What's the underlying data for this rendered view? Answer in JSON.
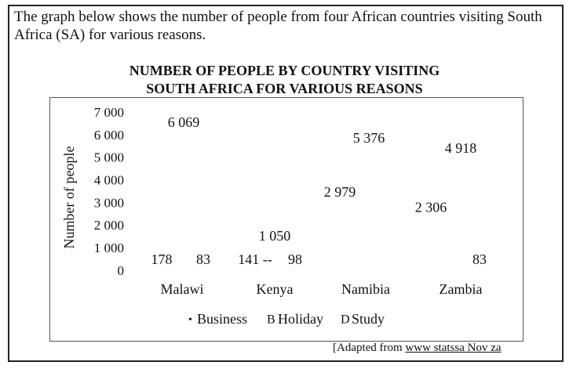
{
  "intro": "The graph below shows the number of people from four African countries visiting South Africa (SA) for various reasons.",
  "chart_data": {
    "type": "bar",
    "title_lines": [
      "NUMBER OF PEOPLE BY COUNTRY VISITING",
      "SOUTH AFRICA FOR VARIOUS REASONS"
    ],
    "ylabel": "Number of people",
    "xlabel": "",
    "ylim": [
      0,
      7000
    ],
    "yticks": [
      0,
      1000,
      2000,
      3000,
      4000,
      5000,
      6000,
      7000
    ],
    "ytick_labels": [
      "0",
      "1 000",
      "2 000",
      "3 000",
      "4 000",
      "5 000",
      "6 000",
      "7 000"
    ],
    "categories": [
      "Malawi",
      "Kenya",
      "Namibia",
      "Zambia"
    ],
    "series": [
      {
        "name": "Business",
        "legend_marker": "•",
        "values": [
          178,
          141,
          2979,
          2306
        ]
      },
      {
        "name": "Holiday",
        "legend_marker": "B",
        "values": [
          6069,
          1050,
          5376,
          4918
        ]
      },
      {
        "name": "Study",
        "legend_marker": "D",
        "values": [
          83,
          98,
          0,
          83
        ]
      }
    ],
    "data_labels": [
      {
        "text": "178",
        "category": "Malawi",
        "series": "Business"
      },
      {
        "text": "6 069",
        "category": "Malawi",
        "series": "Holiday"
      },
      {
        "text": "83",
        "category": "Malawi",
        "series": "Study"
      },
      {
        "text": "141 --",
        "category": "Kenya",
        "series": "Business"
      },
      {
        "text": "1 050",
        "category": "Kenya",
        "series": "Holiday"
      },
      {
        "text": "98",
        "category": "Kenya",
        "series": "Study"
      },
      {
        "text": "2 979",
        "category": "Namibia",
        "series": "Business"
      },
      {
        "text": "5 376",
        "category": "Namibia",
        "series": "Holiday"
      },
      {
        "text": "2 306",
        "category": "Zambia",
        "series": "Business"
      },
      {
        "text": "4 918",
        "category": "Zambia",
        "series": "Holiday"
      },
      {
        "text": "83",
        "category": "Zambia",
        "series": "Study"
      }
    ],
    "legend_placement": "bottom",
    "grid": false
  },
  "source": {
    "prefix": "[Adapted from ",
    "link": "www statssa Nov za"
  }
}
